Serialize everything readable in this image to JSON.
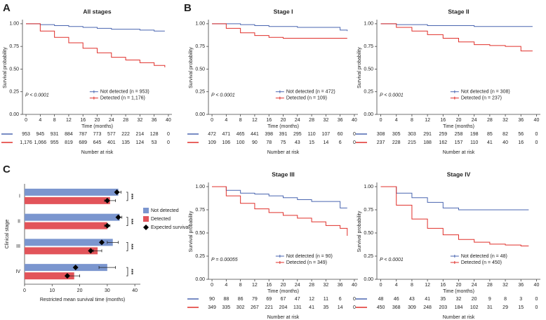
{
  "chart_data": [
    {
      "type": "step",
      "panel_label": "A",
      "title": "All stages",
      "xlabel": "Time (months)",
      "ylabel": "Survival probability",
      "annotation": "P < 0.0001",
      "xlim": [
        -1,
        41
      ],
      "ylim": [
        0,
        1.03
      ],
      "xticks": [
        0,
        4,
        8,
        12,
        16,
        20,
        24,
        28,
        32,
        36,
        40
      ],
      "yticks": [
        {
          "value": 0,
          "label": "0.00"
        },
        {
          "value": 0.25,
          "label": "0.25"
        },
        {
          "value": 0.5,
          "label": "0.50"
        },
        {
          "value": 0.75,
          "label": "0.75"
        },
        {
          "value": 1,
          "label": "1.00"
        }
      ],
      "series": [
        {
          "name": "Not detected (n = 953)",
          "color": "#4a66b0",
          "x": [
            0,
            4,
            8,
            12,
            16,
            20,
            24,
            28,
            32,
            36,
            39
          ],
          "values": [
            1,
            0.99,
            0.98,
            0.97,
            0.96,
            0.95,
            0.94,
            0.94,
            0.93,
            0.92,
            0.92
          ]
        },
        {
          "name": "Detected (n = 1,176)",
          "color": "#e0302b",
          "x": [
            0,
            4,
            8,
            12,
            16,
            20,
            24,
            28,
            32,
            36,
            39
          ],
          "values": [
            1,
            0.92,
            0.85,
            0.79,
            0.73,
            0.68,
            0.63,
            0.6,
            0.57,
            0.54,
            0.52
          ]
        }
      ],
      "risk_table": {
        "title": "Number at risk",
        "rows": [
          [
            953,
            945,
            931,
            884,
            787,
            773,
            577,
            222,
            214,
            128,
            0
          ],
          [
            {
              "value": 1176,
              "label": "1,176"
            },
            {
              "value": 1066,
              "label": "1,066"
            },
            955,
            819,
            689,
            645,
            401,
            135,
            124,
            53,
            0
          ]
        ]
      }
    },
    {
      "type": "step",
      "panel_label": "B",
      "title": "Stage I",
      "xlabel": "Time (months)",
      "ylabel": "Survival probability",
      "annotation": "P < 0.0001",
      "xlim": [
        -1,
        41
      ],
      "ylim": [
        0,
        1.03
      ],
      "xticks": [
        0,
        4,
        8,
        12,
        16,
        20,
        24,
        28,
        32,
        36,
        40
      ],
      "yticks": [
        {
          "value": 0,
          "label": "0.00"
        },
        {
          "value": 0.25,
          "label": "0.25"
        },
        {
          "value": 0.5,
          "label": "0.50"
        },
        {
          "value": 0.75,
          "label": "0.75"
        },
        {
          "value": 1,
          "label": "1.00"
        }
      ],
      "series": [
        {
          "name": "Not detected (n = 472)",
          "color": "#4a66b0",
          "x": [
            0,
            4,
            8,
            12,
            16,
            20,
            24,
            28,
            32,
            36,
            38
          ],
          "values": [
            1,
            1,
            0.99,
            0.98,
            0.97,
            0.97,
            0.96,
            0.96,
            0.96,
            0.93,
            0.92
          ]
        },
        {
          "name": "Detected (n = 109)",
          "color": "#e0302b",
          "x": [
            0,
            4,
            8,
            12,
            16,
            20,
            24,
            28,
            32,
            36,
            38
          ],
          "values": [
            1,
            0.95,
            0.9,
            0.87,
            0.85,
            0.84,
            0.84,
            0.84,
            0.84,
            0.84,
            0.84
          ]
        }
      ],
      "risk_table": {
        "title": "Number at risk",
        "rows": [
          [
            472,
            471,
            465,
            441,
            398,
            391,
            295,
            110,
            107,
            60,
            0
          ],
          [
            109,
            106,
            100,
            90,
            78,
            75,
            43,
            15,
            14,
            6,
            0
          ]
        ]
      }
    },
    {
      "type": "step",
      "title": "Stage II",
      "xlabel": "Time (months)",
      "ylabel": "Survival probability",
      "annotation": "P < 0.0001",
      "xlim": [
        -1,
        41
      ],
      "ylim": [
        0,
        1.03
      ],
      "xticks": [
        0,
        4,
        8,
        12,
        16,
        20,
        24,
        28,
        32,
        36,
        40
      ],
      "yticks": [
        {
          "value": 0,
          "label": "0.00"
        },
        {
          "value": 0.25,
          "label": "0.25"
        },
        {
          "value": 0.5,
          "label": "0.50"
        },
        {
          "value": 0.75,
          "label": "0.75"
        },
        {
          "value": 1,
          "label": "1.00"
        }
      ],
      "series": [
        {
          "name": "Not detected (n = 308)",
          "color": "#4a66b0",
          "x": [
            0,
            4,
            8,
            12,
            16,
            20,
            24,
            28,
            32,
            36,
            39
          ],
          "values": [
            1,
            0.99,
            0.99,
            0.98,
            0.98,
            0.98,
            0.97,
            0.97,
            0.97,
            0.97,
            0.97
          ]
        },
        {
          "name": "Detected (n = 237)",
          "color": "#e0302b",
          "x": [
            0,
            4,
            8,
            12,
            16,
            20,
            24,
            28,
            32,
            36,
            39
          ],
          "values": [
            1,
            0.96,
            0.92,
            0.88,
            0.84,
            0.8,
            0.77,
            0.76,
            0.75,
            0.7,
            0.7
          ]
        }
      ],
      "risk_table": {
        "title": "Number at risk",
        "rows": [
          [
            308,
            305,
            303,
            291,
            259,
            258,
            198,
            85,
            82,
            56,
            0
          ],
          [
            237,
            228,
            215,
            188,
            162,
            157,
            110,
            41,
            40,
            16,
            0
          ]
        ]
      }
    },
    {
      "type": "barh",
      "panel_label": "C",
      "xlabel": "Restricted mean survival time (months)",
      "ylabel": "Clinical stage",
      "categories": [
        "I",
        "II",
        "III",
        "IV"
      ],
      "xlim": [
        0,
        42
      ],
      "xticks": [
        0,
        10,
        20,
        30,
        40
      ],
      "series": [
        {
          "name": "Not detected",
          "color": "#7b96cf",
          "values": [
            34,
            34.5,
            32,
            30
          ],
          "errors": [
            1,
            0.8,
            2,
            3
          ],
          "expected": [
            33.5,
            34,
            28,
            18.5
          ]
        },
        {
          "name": "Detected",
          "color": "#e2545a",
          "values": [
            31,
            30,
            26.5,
            18
          ],
          "errors": [
            2,
            1,
            1.5,
            2
          ],
          "expected": [
            30,
            30,
            24,
            15.5
          ]
        }
      ],
      "expected_label": "Expected survival",
      "significance": [
        "***",
        "***",
        "***",
        "***"
      ]
    },
    {
      "type": "step",
      "title": "Stage III",
      "xlabel": "Time (months)",
      "ylabel": "Survival probability",
      "annotation": "P = 0.00055",
      "xlim": [
        -1,
        41
      ],
      "ylim": [
        0,
        1.03
      ],
      "xticks": [
        0,
        4,
        8,
        12,
        16,
        20,
        24,
        28,
        32,
        36,
        40
      ],
      "yticks": [
        {
          "value": 0,
          "label": "0.00"
        },
        {
          "value": 0.25,
          "label": "0.25"
        },
        {
          "value": 0.5,
          "label": "0.50"
        },
        {
          "value": 0.75,
          "label": "0.75"
        },
        {
          "value": 1,
          "label": "1.00"
        }
      ],
      "series": [
        {
          "name": "Not detected (n = 90)",
          "color": "#4a66b0",
          "x": [
            0,
            4,
            8,
            12,
            16,
            20,
            24,
            28,
            32,
            36,
            38
          ],
          "values": [
            1,
            0.96,
            0.93,
            0.92,
            0.9,
            0.88,
            0.86,
            0.84,
            0.84,
            0.77,
            0.77
          ]
        },
        {
          "name": "Detected (n = 349)",
          "color": "#e0302b",
          "x": [
            0,
            4,
            8,
            12,
            16,
            20,
            24,
            28,
            32,
            36,
            38
          ],
          "values": [
            1,
            0.9,
            0.82,
            0.76,
            0.72,
            0.69,
            0.66,
            0.62,
            0.58,
            0.55,
            0.47
          ]
        }
      ],
      "risk_table": {
        "title": "Number at risk",
        "rows": [
          [
            90,
            88,
            86,
            79,
            69,
            67,
            47,
            12,
            11,
            6,
            0
          ],
          [
            349,
            335,
            302,
            267,
            221,
            204,
            131,
            41,
            35,
            14,
            0
          ]
        ]
      }
    },
    {
      "type": "step",
      "title": "Stage IV",
      "xlabel": "Time (months)",
      "ylabel": "Survival probability",
      "annotation": "P < 0.0001",
      "xlim": [
        -1,
        41
      ],
      "ylim": [
        0,
        1.03
      ],
      "xticks": [
        0,
        4,
        8,
        12,
        16,
        20,
        24,
        28,
        32,
        36,
        40
      ],
      "yticks": [
        {
          "value": 0,
          "label": "0.00"
        },
        {
          "value": 0.25,
          "label": "0.25"
        },
        {
          "value": 0.5,
          "label": "0.50"
        },
        {
          "value": 0.75,
          "label": "0.75"
        },
        {
          "value": 1,
          "label": "1.00"
        }
      ],
      "series": [
        {
          "name": "Not detected (n = 48)",
          "color": "#4a66b0",
          "x": [
            0,
            4,
            8,
            12,
            16,
            20,
            24,
            28,
            32,
            36,
            38
          ],
          "values": [
            1,
            0.93,
            0.88,
            0.83,
            0.77,
            0.75,
            0.75,
            0.75,
            0.75,
            0.75,
            0.75
          ]
        },
        {
          "name": "Detected (n = 450)",
          "color": "#e0302b",
          "x": [
            0,
            4,
            8,
            12,
            16,
            20,
            24,
            28,
            32,
            36,
            38
          ],
          "values": [
            1,
            0.8,
            0.65,
            0.55,
            0.48,
            0.43,
            0.4,
            0.38,
            0.37,
            0.36,
            0.36
          ]
        }
      ],
      "risk_table": {
        "title": "Number at risk",
        "rows": [
          [
            48,
            46,
            43,
            41,
            35,
            32,
            20,
            9,
            8,
            3,
            0
          ],
          [
            450,
            368,
            309,
            248,
            203,
            184,
            102,
            31,
            29,
            15,
            0
          ]
        ]
      }
    }
  ]
}
